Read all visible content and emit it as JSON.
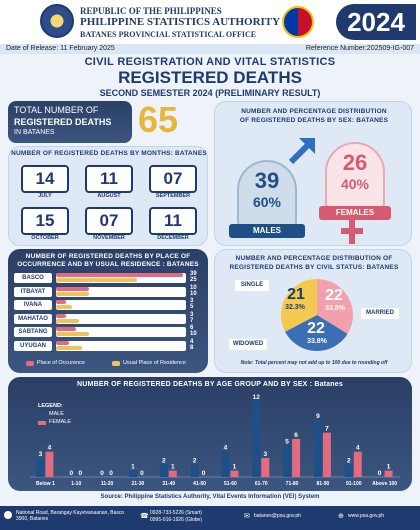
{
  "header": {
    "line1": "REPUBLIC OF THE PHILIPPINES",
    "line2": "PHILIPPINE STATISTICS AUTHORITY",
    "line3": "BATANES PROVINCIAL STATISTICAL OFFICE",
    "year": "2024"
  },
  "release": {
    "date": "Date of Release: 11 February 2025",
    "ref": "Reference Number:202509-IG-007"
  },
  "titles": {
    "main": "CIVIL REGISTRATION AND VITAL STATISTICS",
    "sub": "REGISTERED DEATHS",
    "period": "SECOND SEMESTER 2024 (PRELIMINARY RESULT)"
  },
  "total": {
    "label_a": "TOTAL NUMBER OF",
    "label_b": "REGISTERED DEATHS",
    "label_c": "IN BATANES",
    "value": "65"
  },
  "months": {
    "title": "NUMBER OF REGISTERED DEATHS BY MONTHS: BATANES",
    "items": [
      {
        "name": "JULY",
        "value": "14"
      },
      {
        "name": "AUGUST",
        "value": "11"
      },
      {
        "name": "SEPTEMBER",
        "value": "07"
      },
      {
        "name": "OCTOBER",
        "value": "15"
      },
      {
        "name": "NOVEMBER",
        "value": "07"
      },
      {
        "name": "DECEMBER",
        "value": "11"
      }
    ]
  },
  "sex": {
    "title_a": "NUMBER AND PERCENTAGE DISTRIBUTION",
    "title_b": "OF REGISTERED DEATHS BY SEX: BATANES",
    "males": {
      "count": "39",
      "pct": "60%",
      "label": "MALES"
    },
    "females": {
      "count": "26",
      "pct": "40%",
      "label": "FEMALES"
    }
  },
  "place": {
    "title_a": "NUMBER OF REGISTERED DEATHS BY PLACE OF",
    "title_b": "OCCURRENCE AND BY USUAL RESIDENCE : BATANES",
    "legend_occ": "Place of Occurence",
    "legend_res": "Usual Place of Residence",
    "max": 40,
    "rows": [
      {
        "name": "BASCO",
        "occ": 39,
        "res": 25
      },
      {
        "name": "ITBAYAT",
        "occ": 10,
        "res": 10
      },
      {
        "name": "IVANA",
        "occ": 3,
        "res": 5
      },
      {
        "name": "MAHATAO",
        "occ": 3,
        "res": 7
      },
      {
        "name": "SABTANG",
        "occ": 6,
        "res": 10
      },
      {
        "name": "UYUGAN",
        "occ": 4,
        "res": 8
      }
    ]
  },
  "civil": {
    "title_a": "NUMBER AND PERCENTAGE DISTRIBUTION OF",
    "title_b": "REGISTERED DEATHS BY CIVIL STATUS: BATANES",
    "single": {
      "label": "SINGLE",
      "count": "21",
      "pct": "32.3%"
    },
    "married": {
      "label": "MARRIED",
      "count": "22",
      "pct": "33.8%"
    },
    "widowed": {
      "label": "WIDOWED",
      "count": "22",
      "pct": "33.8%"
    },
    "note": "Note: Total percent may not add up to 100 due to rounding off"
  },
  "chart_data": {
    "type": "bar",
    "title": "NUMBER OF REGISTERED DEATHS BY AGE GROUP AND BY SEX : Batanes",
    "legend_title": "LEGEND:",
    "categories": [
      "Below 1",
      "1-10",
      "11-20",
      "21-30",
      "31-40",
      "41-50",
      "51-60",
      "61-70",
      "71-80",
      "81-90",
      "91-100",
      "Above 100"
    ],
    "series": [
      {
        "name": "MALE",
        "values": [
          3,
          0,
          0,
          1,
          2,
          2,
          4,
          12,
          5,
          9,
          2,
          0
        ]
      },
      {
        "name": "FEMALE",
        "values": [
          4,
          0,
          0,
          0,
          1,
          0,
          1,
          3,
          6,
          7,
          4,
          1
        ]
      }
    ],
    "ylim": [
      0,
      12
    ],
    "colors": {
      "male": "#1f4f87",
      "female": "#e36b7f"
    }
  },
  "source": "Source: Philippine Statistics Authority, Vital Events Information (VEI) System",
  "footer": {
    "address": "National Road, Barangay Kayvivanaanan, Basco 3900, Batanes",
    "phone1": "0928-733-5226 (Smart)",
    "phone2": "0995-016-1926 (Globe)",
    "email": "batanes@psa.gov.ph",
    "web": "www.psa.gov.ph"
  }
}
